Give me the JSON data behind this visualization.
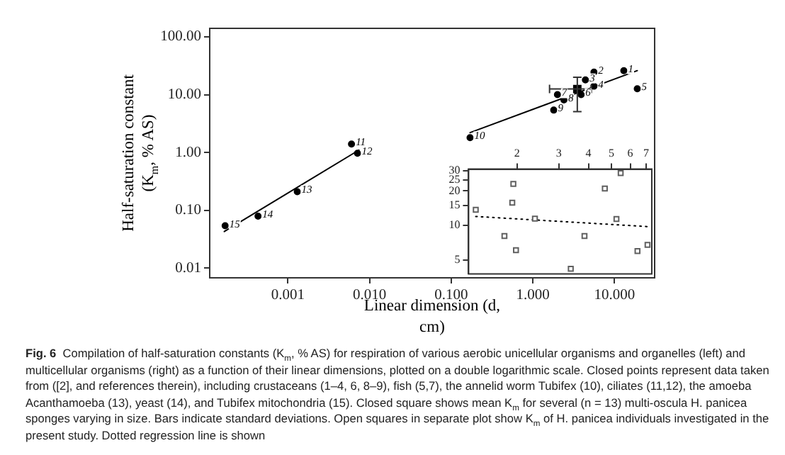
{
  "chart_data": [
    {
      "type": "scatter",
      "xlabel": "Linear dimension (d, cm)",
      "ylabel": "Half-saturation constant (K$_{m}$, % AS)",
      "log": "xy",
      "grid": false,
      "legend": false,
      "xlim": [
        0.00011,
        31
      ],
      "xticks": [
        {
          "value": 0.001,
          "label": "0.001"
        },
        {
          "value": 0.01,
          "label": "0.010"
        },
        {
          "value": 0.1,
          "label": "0.100"
        },
        {
          "value": 1,
          "label": "1.000"
        },
        {
          "value": 10,
          "label": "10.000"
        }
      ],
      "ylim": [
        0.0068,
        140
      ],
      "yticks": [
        {
          "value": 0.01,
          "label": "0.01"
        },
        {
          "value": 0.1,
          "label": "0.10"
        },
        {
          "value": 1,
          "label": "1.00"
        },
        {
          "value": 10,
          "label": "10.00"
        },
        {
          "value": 100,
          "label": "100.00"
        }
      ],
      "series": [
        {
          "type": "scatter",
          "marker": "circle",
          "color": "#000000",
          "x": [
            13,
            5.6,
            4.4,
            5.6,
            19,
            3.9,
            2.0,
            2.4,
            1.8,
            0.17,
            0.006,
            0.0071,
            0.0013,
            0.00043,
            0.00017
          ],
          "values": [
            26,
            24.5,
            18,
            14,
            12.6,
            10,
            10,
            8.1,
            5.4,
            1.8,
            1.4,
            0.97,
            0.21,
            0.079,
            0.054
          ]
        },
        {
          "type": "scatter",
          "marker": "square",
          "color": "#000000",
          "x": [
            3.5
          ],
          "values": [
            12.5
          ],
          "errors": [
            [
              5.1,
              20
            ]
          ],
          "xerrors": [
            [
              1.6,
              5.2
            ]
          ]
        },
        {
          "type": "line",
          "line_style": "solid",
          "color": "#000000",
          "x": [
            0.000166,
            0.0074
          ],
          "values": [
            0.043,
            1.1
          ]
        },
        {
          "type": "line",
          "line_style": "solid",
          "color": "#000000",
          "x": [
            0.17,
            19
          ],
          "values": [
            2.2,
            26
          ]
        }
      ],
      "annotations": [
        {
          "text": "1",
          "x": 13,
          "y": 26
        },
        {
          "text": "2",
          "x": 5.6,
          "y": 24.5
        },
        {
          "text": "3",
          "x": 4.4,
          "y": 18
        },
        {
          "text": "4",
          "x": 5.6,
          "y": 14
        },
        {
          "text": "5",
          "x": 19,
          "y": 12.6
        },
        {
          "text": "6",
          "x": 3.9,
          "y": 10
        },
        {
          "text": "7",
          "x": 2.0,
          "y": 10
        },
        {
          "text": "8",
          "x": 2.4,
          "y": 8.1
        },
        {
          "text": "9",
          "x": 1.8,
          "y": 5.4
        },
        {
          "text": "10",
          "x": 0.17,
          "y": 1.8
        },
        {
          "text": "11",
          "x": 0.006,
          "y": 1.4
        },
        {
          "text": "12",
          "x": 0.0071,
          "y": 0.97
        },
        {
          "text": "13",
          "x": 0.0013,
          "y": 0.21
        },
        {
          "text": "14",
          "x": 0.00043,
          "y": 0.079
        },
        {
          "text": "15",
          "x": 0.00017,
          "y": 0.054
        },
        "Fig. 6",
        "Compilation of half-saturation constants (K$_{m}$, % AS) for respiration of various aerobic unicellular organisms and organelles (left) and multicellular organisms (right) as a function of their linear dimensions, plotted on a double logarithmic scale. Closed points represent data taken from ([2], and references therein), including crustaceans (1–4, 6, 8–9), fish (5,7), the annelid worm Tubifex (10), ciliates (11,12), the amoeba Acanthamoeba (13), yeast (14), and Tubifex mitochondria (15). Closed square shows mean K$_{m}$ for several (n = 13) multi-oscula H. panicea sponges varying in size. Bars indicate standard deviations. Open squares in separate plot show K$_{m}$ of H. panicea individuals investigated in the present study. Dotted regression line is shown"
      ]
    },
    {
      "type": "scatter",
      "log": "xy",
      "grid": false,
      "legend": false,
      "xlim": [
        1.25,
        7.4
      ],
      "xticks": [
        2,
        3,
        4,
        5,
        6,
        7
      ],
      "ylim": [
        3.8,
        31
      ],
      "yticks": [
        5,
        10,
        15,
        20,
        25,
        30
      ],
      "series": [
        {
          "type": "scatter",
          "marker": "square",
          "color": "#606060",
          "x": [
            1.34,
            1.93,
            1.91,
            1.77,
            1.98,
            2.38,
            3.37,
            3.85,
            4.69,
            5.47,
            5.25,
            6.44,
            7.1
          ],
          "values": [
            13.7,
            23,
            15.8,
            8.1,
            6.1,
            11.5,
            4.2,
            8.1,
            21,
            28.6,
            11.4,
            6.0,
            6.8
          ]
        },
        {
          "type": "line",
          "line_style": "dotted",
          "color": "#000000",
          "x": [
            1.34,
            7.1
          ],
          "values": [
            12.0,
            9.8
          ]
        }
      ]
    }
  ]
}
